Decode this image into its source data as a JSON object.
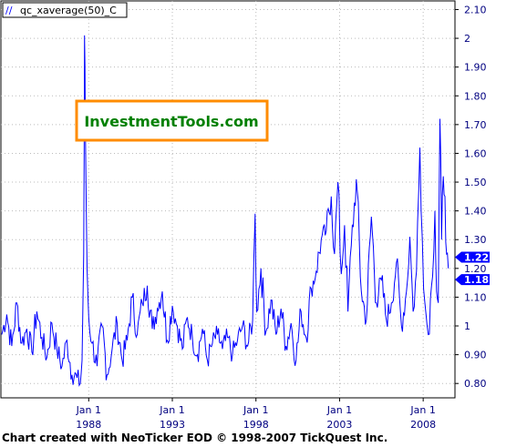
{
  "chart_data": {
    "type": "line",
    "legend": "qc_xaverage(50)_C",
    "watermark": "InvestmentTools.com",
    "ylim": [
      0.75,
      2.13
    ],
    "xlim": [
      1982.75,
      2009.9
    ],
    "y_ticks": [
      "0.80",
      "0.90",
      "1",
      "1.10",
      "1.20",
      "1.30",
      "1.40",
      "1.50",
      "1.60",
      "1.70",
      "1.80",
      "1.90",
      "2",
      "2.10"
    ],
    "x_ticks": [
      {
        "label_top": "Jan 1",
        "label_bottom": "1988",
        "year": 1988
      },
      {
        "label_top": "Jan 1",
        "label_bottom": "1993",
        "year": 1993
      },
      {
        "label_top": "Jan 1",
        "label_bottom": "1998",
        "year": 1998
      },
      {
        "label_top": "Jan 1",
        "label_bottom": "2003",
        "year": 2003
      },
      {
        "label_top": "Jan 1",
        "label_bottom": "2008",
        "year": 2008
      }
    ],
    "last_value_labels": [
      "1.22",
      "1.18"
    ],
    "series": [
      {
        "color": "#0000ff",
        "x": [
          1982.8,
          1983.1,
          1983.4,
          1983.7,
          1984.0,
          1984.3,
          1984.6,
          1984.9,
          1985.2,
          1985.5,
          1985.8,
          1986.1,
          1986.4,
          1986.7,
          1987.0,
          1987.3,
          1987.5,
          1987.6,
          1987.7,
          1987.75,
          1987.8,
          1987.9,
          1988.0,
          1988.2,
          1988.5,
          1988.8,
          1989.1,
          1989.4,
          1989.7,
          1990.0,
          1990.3,
          1990.6,
          1990.9,
          1991.2,
          1991.5,
          1991.8,
          1992.1,
          1992.4,
          1992.7,
          1993.0,
          1993.3,
          1993.6,
          1993.9,
          1994.2,
          1994.5,
          1994.8,
          1995.1,
          1995.4,
          1995.7,
          1996.0,
          1996.3,
          1996.6,
          1996.9,
          1997.2,
          1997.5,
          1997.8,
          1997.95,
          1998.05,
          1998.3,
          1998.6,
          1998.9,
          1999.2,
          1999.5,
          1999.8,
          2000.1,
          2000.4,
          2000.7,
          2001.0,
          2001.3,
          2001.6,
          2001.9,
          2002.2,
          2002.5,
          2002.7,
          2002.9,
          2003.1,
          2003.3,
          2003.5,
          2003.7,
          2004.0,
          2004.3,
          2004.6,
          2004.9,
          2005.2,
          2005.5,
          2005.8,
          2006.1,
          2006.4,
          2006.7,
          2007.0,
          2007.2,
          2007.4,
          2007.6,
          2007.8,
          2007.95,
          2008.1,
          2008.3,
          2008.5,
          2008.7,
          2008.8,
          2008.9,
          2009.0,
          2009.1,
          2009.2,
          2009.3,
          2009.4,
          2009.5
        ],
        "y": [
          0.97,
          1.04,
          0.93,
          1.08,
          0.94,
          0.99,
          0.91,
          1.05,
          0.96,
          0.89,
          1.01,
          0.92,
          0.86,
          0.95,
          0.83,
          0.82,
          0.8,
          0.88,
          1.25,
          2.01,
          1.7,
          1.2,
          1.03,
          0.94,
          0.86,
          1.0,
          0.83,
          0.92,
          1.01,
          0.88,
          0.95,
          1.1,
          0.97,
          1.08,
          1.14,
          0.99,
          1.06,
          1.12,
          0.95,
          1.07,
          1.0,
          0.92,
          1.03,
          0.96,
          0.9,
          0.99,
          0.88,
          0.94,
          0.97,
          0.92,
          0.96,
          0.9,
          0.95,
          1.0,
          0.93,
          1.02,
          1.39,
          1.05,
          1.2,
          0.98,
          1.09,
          0.97,
          1.06,
          0.93,
          1.01,
          0.88,
          1.05,
          0.96,
          1.13,
          1.19,
          1.3,
          1.33,
          1.45,
          1.25,
          1.5,
          1.18,
          1.35,
          1.05,
          1.28,
          1.51,
          1.12,
          1.02,
          1.38,
          1.08,
          1.16,
          1.02,
          1.08,
          1.22,
          1.0,
          1.12,
          1.31,
          1.05,
          1.19,
          1.62,
          1.3,
          1.08,
          0.97,
          1.14,
          1.4,
          1.12,
          1.08,
          1.72,
          1.3,
          1.52,
          1.45,
          1.25,
          1.2
        ]
      }
    ],
    "footer": "Chart created with NeoTicker EOD © 1998-2007 TickQuest Inc."
  }
}
